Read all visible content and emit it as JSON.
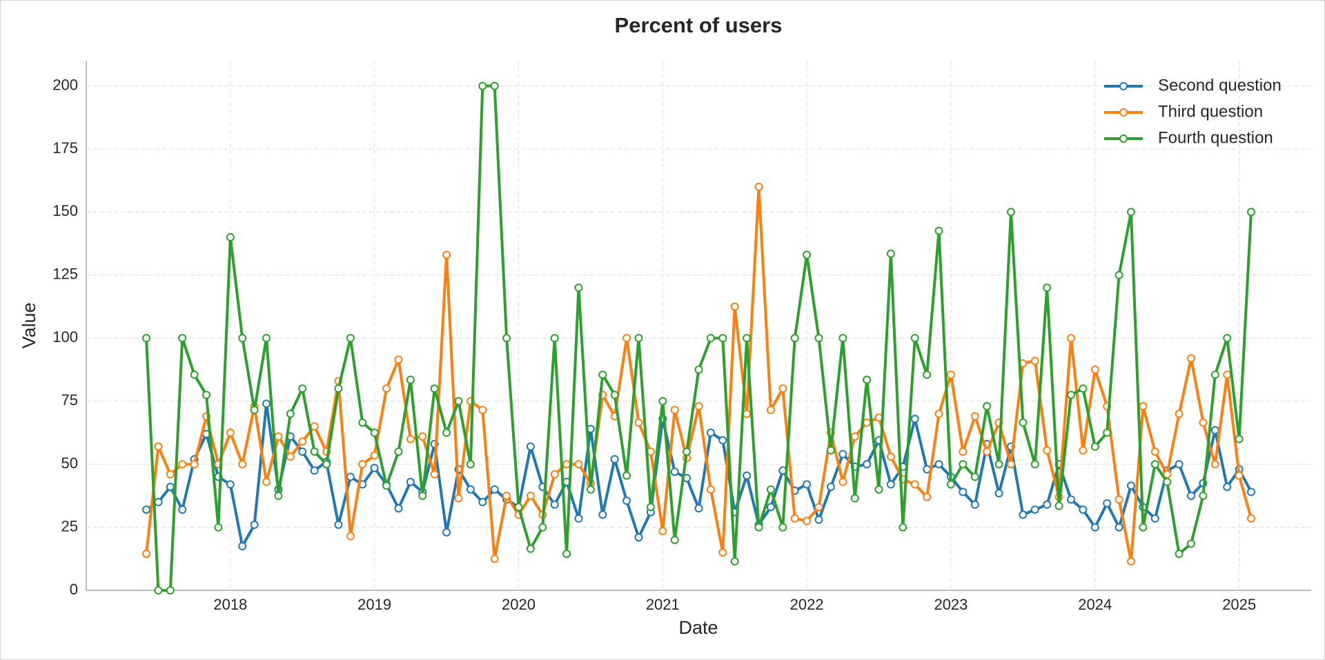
{
  "chart_data": {
    "type": "line",
    "title": "Percent of users",
    "xlabel": "Date",
    "ylabel": "Value",
    "x": [
      "2017-06",
      "2017-07",
      "2017-08",
      "2017-09",
      "2017-10",
      "2017-11",
      "2017-12",
      "2018-01",
      "2018-02",
      "2018-03",
      "2018-04",
      "2018-05",
      "2018-06",
      "2018-07",
      "2018-08",
      "2018-09",
      "2018-10",
      "2018-11",
      "2018-12",
      "2019-01",
      "2019-02",
      "2019-03",
      "2019-04",
      "2019-05",
      "2019-06",
      "2019-07",
      "2019-08",
      "2019-09",
      "2019-10",
      "2019-11",
      "2019-12",
      "2020-01",
      "2020-02",
      "2020-03",
      "2020-04",
      "2020-05",
      "2020-06",
      "2020-07",
      "2020-08",
      "2020-09",
      "2020-10",
      "2020-11",
      "2020-12",
      "2021-01",
      "2021-02",
      "2021-03",
      "2021-04",
      "2021-05",
      "2021-06",
      "2021-07",
      "2021-08",
      "2021-09",
      "2021-10",
      "2021-11",
      "2021-12",
      "2022-01",
      "2022-02",
      "2022-03",
      "2022-04",
      "2022-05",
      "2022-06",
      "2022-07",
      "2022-08",
      "2022-09",
      "2022-10",
      "2022-11",
      "2022-12",
      "2023-01",
      "2023-02",
      "2023-03",
      "2023-04",
      "2023-05",
      "2023-06",
      "2023-07",
      "2023-08",
      "2023-09",
      "2023-10",
      "2023-11",
      "2023-12",
      "2024-01",
      "2024-02",
      "2024-03",
      "2024-04",
      "2024-05",
      "2024-06",
      "2024-07",
      "2024-08",
      "2024-09",
      "2024-10",
      "2024-11",
      "2024-12",
      "2025-01",
      "2025-02"
    ],
    "series": [
      {
        "name": "Second question",
        "color": "#1f77b4",
        "values": [
          32,
          35,
          41,
          32,
          52,
          62,
          45,
          42,
          17.5,
          26,
          74,
          40,
          61,
          55,
          47.5,
          51,
          26,
          45,
          42,
          48.5,
          42,
          32.5,
          43,
          39,
          58,
          23,
          48,
          40,
          35,
          40,
          36,
          33,
          57,
          41,
          34,
          43,
          28.5,
          64,
          30,
          52,
          35.5,
          21,
          31,
          68,
          47,
          44.5,
          32.5,
          62.5,
          59.5,
          31,
          45.5,
          26,
          33,
          47.5,
          39.5,
          42,
          28,
          41,
          54,
          49,
          50,
          59.5,
          42,
          49,
          68,
          48,
          50,
          45,
          39,
          34,
          58,
          38.5,
          57,
          30,
          32,
          34,
          50,
          36,
          32,
          25,
          34.5,
          25,
          41.5,
          33,
          28.5,
          47.5,
          50,
          37.5,
          42.5,
          63.5,
          41,
          48,
          39
        ]
      },
      {
        "name": "Third question",
        "color": "#ff7f0e",
        "values": [
          14.5,
          57,
          46,
          50,
          50,
          69,
          50,
          62.5,
          50,
          73,
          43,
          61,
          53,
          59,
          65,
          55,
          83,
          21.5,
          50,
          53.5,
          80,
          91.5,
          60,
          61,
          46,
          133,
          36.5,
          75,
          71.5,
          12.5,
          37.5,
          30,
          37.5,
          30,
          46,
          50,
          50,
          42.5,
          77.5,
          69,
          100,
          66.5,
          55,
          23.5,
          71.5,
          52.5,
          73,
          40,
          15,
          112.5,
          70,
          160,
          71.5,
          80,
          28.5,
          27.5,
          33,
          62.5,
          43,
          61,
          66.5,
          68.5,
          53,
          44,
          42,
          37,
          70,
          85.5,
          55,
          69,
          55,
          66.5,
          50,
          90,
          91,
          55.5,
          37,
          100,
          55.5,
          87.5,
          73,
          36,
          11.5,
          73,
          55,
          46,
          70,
          92,
          66.5,
          50,
          85.5,
          45.5,
          28.5
        ]
      },
      {
        "name": "Fourth question",
        "color": "#2ca02c",
        "values": [
          100,
          0,
          0,
          100,
          85.5,
          77.5,
          25,
          140,
          100,
          71.5,
          100,
          37.5,
          70,
          80,
          55,
          50,
          80,
          100,
          66.5,
          62.5,
          41.5,
          55,
          83.5,
          37.5,
          80,
          62.5,
          75,
          50,
          200,
          200,
          100,
          33,
          16.5,
          25,
          100,
          14.5,
          120,
          40,
          85.5,
          77.5,
          45.5,
          100,
          33,
          75,
          20,
          55,
          87.5,
          100,
          100,
          11.5,
          100,
          25,
          40,
          25,
          100,
          133,
          100,
          55.5,
          100,
          36.5,
          83.5,
          40,
          133.5,
          25,
          100,
          85.5,
          142.5,
          42,
          50,
          45,
          73,
          50,
          150,
          66.5,
          50,
          120,
          33.5,
          77.5,
          80,
          57,
          62.5,
          125,
          150,
          25,
          50,
          43,
          14.5,
          18.5,
          37.5,
          85.5,
          100,
          60,
          150
        ]
      }
    ],
    "xlim": [
      "2017-01",
      "2025-07"
    ],
    "xticks": [
      "2018",
      "2019",
      "2020",
      "2021",
      "2022",
      "2023",
      "2024",
      "2025"
    ],
    "ylim": [
      0,
      210
    ],
    "yticks": [
      0,
      25,
      50,
      75,
      100,
      125,
      150,
      175,
      200
    ],
    "grid": true,
    "legend": "upper right"
  }
}
